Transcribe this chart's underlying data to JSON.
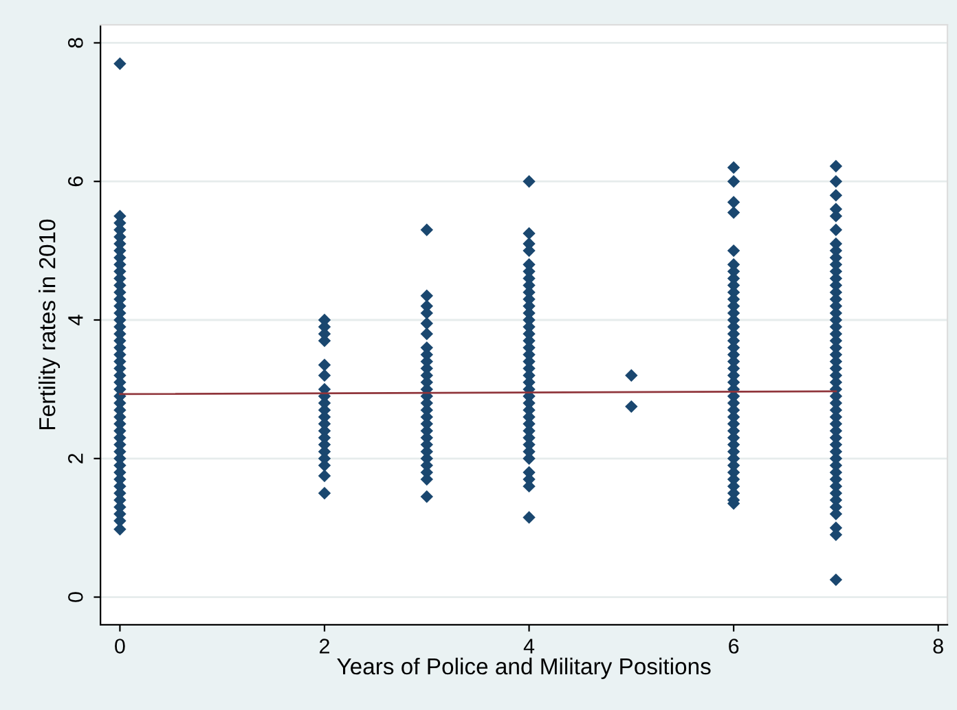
{
  "chart_data": {
    "type": "scatter",
    "xlabel": "Years of Police and Military Positions",
    "ylabel": "Fertility rates in 2010",
    "xlim": [
      -0.19,
      8.09
    ],
    "ylim": [
      -0.4,
      8.26
    ],
    "xticks": [
      0,
      2,
      4,
      6,
      8
    ],
    "yticks": [
      0,
      2,
      4,
      6,
      8
    ],
    "grid": "y",
    "marker": "diamond",
    "series": [
      {
        "color": "#1a476f",
        "x": [
          0,
          0,
          0,
          0,
          0,
          0,
          0,
          0,
          0,
          0,
          0,
          0,
          0,
          0,
          0,
          0,
          0,
          0,
          0,
          0,
          0,
          0,
          0,
          0,
          0,
          0,
          0,
          0,
          0,
          0,
          0,
          0,
          0,
          0,
          0,
          0,
          0,
          0,
          0,
          0,
          0,
          0,
          0,
          0,
          0,
          0,
          0
        ],
        "values": [
          7.7,
          5.5,
          5.4,
          5.3,
          5.2,
          5.1,
          5.0,
          4.9,
          4.8,
          4.7,
          4.6,
          4.5,
          4.4,
          4.3,
          4.2,
          4.1,
          4.0,
          3.9,
          3.8,
          3.7,
          3.6,
          3.5,
          3.4,
          3.3,
          3.2,
          3.1,
          3.0,
          2.9,
          2.8,
          2.7,
          2.6,
          2.5,
          2.4,
          2.3,
          2.2,
          2.1,
          2.0,
          1.9,
          1.8,
          1.7,
          1.6,
          1.5,
          1.4,
          1.3,
          1.2,
          1.1,
          0.98
        ]
      },
      {
        "color": "#1a476f",
        "x": [
          2,
          2,
          2,
          2,
          2,
          2,
          2,
          2,
          2,
          2,
          2,
          2,
          2,
          2,
          2,
          2,
          2,
          2,
          2,
          2
        ],
        "values": [
          4.0,
          3.9,
          3.8,
          3.7,
          3.35,
          3.2,
          3.0,
          2.9,
          2.8,
          2.7,
          2.6,
          2.5,
          2.4,
          2.3,
          2.2,
          2.1,
          2.0,
          1.9,
          1.75,
          1.5
        ]
      },
      {
        "color": "#1a476f",
        "x": [
          3,
          3,
          3,
          3,
          3,
          3,
          3,
          3,
          3,
          3,
          3,
          3,
          3,
          3,
          3,
          3,
          3,
          3,
          3,
          3,
          3,
          3,
          3,
          3,
          3,
          3,
          3
        ],
        "values": [
          5.3,
          4.35,
          4.2,
          4.1,
          3.95,
          3.8,
          3.6,
          3.5,
          3.4,
          3.3,
          3.2,
          3.1,
          3.0,
          2.9,
          2.8,
          2.7,
          2.6,
          2.5,
          2.4,
          2.3,
          2.2,
          2.1,
          2.0,
          1.9,
          1.8,
          1.7,
          1.45
        ]
      },
      {
        "color": "#1a476f",
        "x": [
          4,
          4,
          4,
          4,
          4,
          4,
          4,
          4,
          4,
          4,
          4,
          4,
          4,
          4,
          4,
          4,
          4,
          4,
          4,
          4,
          4,
          4,
          4,
          4,
          4,
          4,
          4,
          4,
          4,
          4,
          4,
          4,
          4,
          4,
          4,
          4,
          4
        ],
        "values": [
          6.0,
          5.25,
          5.1,
          5.0,
          4.8,
          4.7,
          4.6,
          4.5,
          4.4,
          4.3,
          4.2,
          4.1,
          4.0,
          3.9,
          3.8,
          3.7,
          3.6,
          3.5,
          3.4,
          3.3,
          3.2,
          3.1,
          3.0,
          2.9,
          2.8,
          2.7,
          2.6,
          2.5,
          2.4,
          2.3,
          2.2,
          2.1,
          2.0,
          1.8,
          1.7,
          1.6,
          1.15
        ]
      },
      {
        "color": "#1a476f",
        "x": [
          5,
          5
        ],
        "values": [
          3.2,
          2.75
        ]
      },
      {
        "color": "#1a476f",
        "x": [
          6,
          6,
          6,
          6,
          6,
          6,
          6,
          6,
          6,
          6,
          6,
          6,
          6,
          6,
          6,
          6,
          6,
          6,
          6,
          6,
          6,
          6,
          6,
          6,
          6,
          6,
          6,
          6,
          6,
          6,
          6,
          6,
          6,
          6,
          6,
          6,
          6,
          6,
          6,
          6,
          6
        ],
        "values": [
          6.2,
          6.0,
          5.7,
          5.55,
          5.0,
          4.8,
          4.7,
          4.6,
          4.5,
          4.4,
          4.3,
          4.2,
          4.1,
          4.0,
          3.9,
          3.8,
          3.7,
          3.6,
          3.5,
          3.4,
          3.3,
          3.2,
          3.1,
          3.0,
          2.9,
          2.8,
          2.7,
          2.6,
          2.5,
          2.4,
          2.3,
          2.2,
          2.1,
          2.0,
          1.9,
          1.8,
          1.7,
          1.6,
          1.5,
          1.4,
          1.35
        ]
      },
      {
        "color": "#1a476f",
        "x": [
          7,
          7,
          7,
          7,
          7,
          7,
          7,
          7,
          7,
          7,
          7,
          7,
          7,
          7,
          7,
          7,
          7,
          7,
          7,
          7,
          7,
          7,
          7,
          7,
          7,
          7,
          7,
          7,
          7,
          7,
          7,
          7,
          7,
          7,
          7,
          7,
          7,
          7,
          7,
          7,
          7,
          7,
          7,
          7,
          7,
          7,
          7,
          7,
          7
        ],
        "values": [
          6.22,
          6.0,
          5.8,
          5.6,
          5.5,
          5.3,
          5.1,
          5.0,
          4.9,
          4.8,
          4.7,
          4.6,
          4.5,
          4.4,
          4.3,
          4.2,
          4.1,
          4.0,
          3.9,
          3.8,
          3.7,
          3.6,
          3.5,
          3.4,
          3.3,
          3.2,
          3.1,
          3.0,
          2.9,
          2.8,
          2.7,
          2.6,
          2.5,
          2.4,
          2.3,
          2.2,
          2.1,
          2.0,
          1.9,
          1.8,
          1.7,
          1.6,
          1.5,
          1.4,
          1.3,
          1.2,
          1.0,
          0.9,
          0.25
        ]
      },
      {
        "type": "line",
        "marker": "none",
        "color": "#90353b",
        "x": [
          0,
          7
        ],
        "values": [
          2.93,
          2.97
        ]
      }
    ]
  }
}
